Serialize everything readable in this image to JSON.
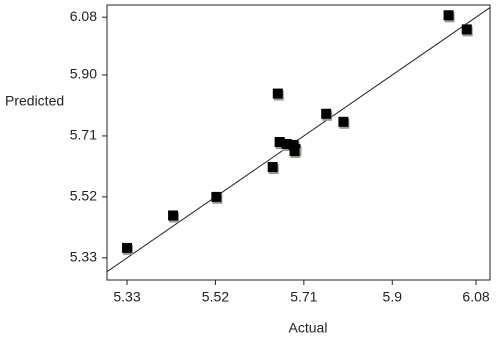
{
  "chart_data": {
    "type": "scatter",
    "x_label": "Actual",
    "y_label": "Predicted",
    "x": [
      5.33,
      5.429,
      5.522,
      5.643,
      5.654,
      5.658,
      5.673,
      5.688,
      5.692,
      5.69,
      5.758,
      5.795,
      6.021,
      6.06
    ],
    "values": [
      5.361,
      5.462,
      5.52,
      5.613,
      5.842,
      5.691,
      5.685,
      5.682,
      5.669,
      5.663,
      5.779,
      5.754,
      6.086,
      6.042
    ],
    "color": "#000000",
    "xlim": [
      5.287,
      6.11
    ],
    "ylim": [
      5.261,
      6.118
    ],
    "xticks": [
      5.33,
      5.52,
      5.71,
      5.9,
      {
        "value": 6.08,
        "label": "6.08"
      }
    ],
    "yticks": [
      5.33,
      5.52,
      5.71,
      {
        "value": 5.9,
        "label": "5.90"
      },
      6.08
    ]
  }
}
